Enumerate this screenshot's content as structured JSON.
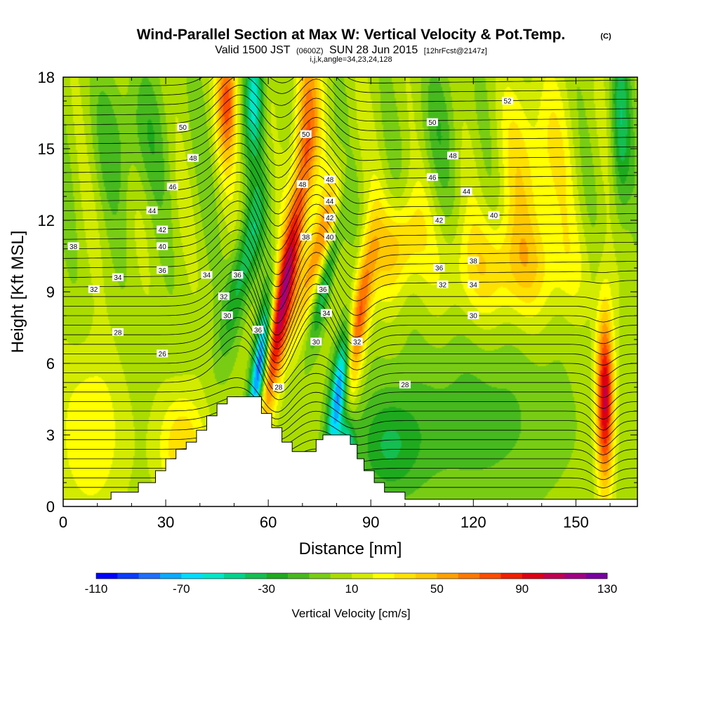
{
  "chart_data": {
    "type": "heatmap",
    "title": "Wind-Parallel Section at Max W: Vertical Velocity & Pot.Temp.",
    "copyright": "(C)",
    "subtitle": {
      "prefix": "Valid 1500 JST",
      "utc": "(0600Z)",
      "date": "SUN 28 Jun 2015",
      "forecast": "[12hrFcst@2147z]"
    },
    "info": "i,j,k,angle=34,23,24,128",
    "xlabel": "Distance [nm]",
    "ylabel": "Height [Kft MSL]",
    "xlim": [
      0,
      168
    ],
    "ylim": [
      0,
      18
    ],
    "x_ticks": [
      "0",
      "30",
      "60",
      "90",
      "120",
      "150"
    ],
    "y_ticks": [
      "0",
      "3",
      "6",
      "9",
      "12",
      "15",
      "18"
    ],
    "grid": false,
    "colorbar": {
      "label": "Vertical Velocity [cm/s]",
      "ticks": [
        "-110",
        "-70",
        "-30",
        "10",
        "50",
        "90",
        "130"
      ],
      "min": -110,
      "max": 130,
      "step": 10,
      "colors": [
        "#0000ff",
        "#0a3cff",
        "#1e6eff",
        "#0aaaff",
        "#00dcff",
        "#00e6c8",
        "#00d28c",
        "#14be50",
        "#1eaa1e",
        "#46b91e",
        "#78cd14",
        "#aadc00",
        "#d2eb00",
        "#ffff00",
        "#ffe100",
        "#ffc800",
        "#ffa000",
        "#ff7800",
        "#ff4b00",
        "#f01e00",
        "#dc0014",
        "#be0050",
        "#a00082",
        "#7800a0"
      ]
    },
    "background_w": 5,
    "terrain": [
      [
        0,
        0.3
      ],
      [
        14,
        0.3
      ],
      [
        14,
        0.6
      ],
      [
        22,
        0.6
      ],
      [
        22,
        1.0
      ],
      [
        27,
        1.0
      ],
      [
        27,
        1.5
      ],
      [
        30,
        1.5
      ],
      [
        30,
        2.0
      ],
      [
        33,
        2.0
      ],
      [
        33,
        2.4
      ],
      [
        36,
        2.4
      ],
      [
        36,
        2.7
      ],
      [
        39,
        2.7
      ],
      [
        39,
        3.2
      ],
      [
        42,
        3.2
      ],
      [
        42,
        3.8
      ],
      [
        45,
        3.8
      ],
      [
        45,
        4.3
      ],
      [
        48,
        4.3
      ],
      [
        48,
        4.6
      ],
      [
        58,
        4.6
      ],
      [
        58,
        3.9
      ],
      [
        61,
        3.9
      ],
      [
        61,
        3.3
      ],
      [
        64,
        3.3
      ],
      [
        64,
        2.7
      ],
      [
        67,
        2.7
      ],
      [
        67,
        2.3
      ],
      [
        74,
        2.3
      ],
      [
        74,
        2.8
      ],
      [
        76,
        2.8
      ],
      [
        76,
        3.0
      ],
      [
        84,
        3.0
      ],
      [
        84,
        2.6
      ],
      [
        86,
        2.6
      ],
      [
        86,
        2.0
      ],
      [
        88,
        2.0
      ],
      [
        88,
        1.5
      ],
      [
        91,
        1.5
      ],
      [
        91,
        1.0
      ],
      [
        94,
        1.0
      ],
      [
        94,
        0.6
      ],
      [
        100,
        0.6
      ],
      [
        100,
        0.3
      ],
      [
        168,
        0.3
      ]
    ],
    "w_features": [
      {
        "x": 64,
        "z": 8.5,
        "sx": 2.2,
        "sz": 3.6,
        "value": 105,
        "tilt": 0.38
      },
      {
        "x": 57.5,
        "z": 5.8,
        "sx": 1.6,
        "sz": 2.0,
        "value": -110,
        "tilt": 0.3
      },
      {
        "x": 53,
        "z": 10.2,
        "sx": 2.6,
        "sz": 2.5,
        "value": -45,
        "tilt": 0.5
      },
      {
        "x": 81,
        "z": 5.0,
        "sx": 1.8,
        "sz": 2.1,
        "value": -105,
        "tilt": 0.3
      },
      {
        "x": 83,
        "z": 2.2,
        "sx": 1.6,
        "sz": 1.0,
        "value": -70,
        "tilt": 0.0
      },
      {
        "x": 86,
        "z": 7.6,
        "sx": 2.2,
        "sz": 2.5,
        "value": 80,
        "tilt": 0.35
      },
      {
        "x": 74,
        "z": 10.5,
        "sx": 2.4,
        "sz": 2.2,
        "value": 55,
        "tilt": 0.6
      },
      {
        "x": 77,
        "z": 9.6,
        "sx": 1.5,
        "sz": 2.0,
        "value": -45,
        "tilt": 0.5
      },
      {
        "x": 56,
        "z": 17.2,
        "sx": 2.0,
        "sz": 1.8,
        "value": -60,
        "tilt": 0.0
      },
      {
        "x": 48,
        "z": 17.0,
        "sx": 2.2,
        "sz": 1.8,
        "value": 65,
        "tilt": 0.0
      },
      {
        "x": 71,
        "z": 16.0,
        "sx": 2.6,
        "sz": 2.8,
        "value": 55,
        "tilt": 0.1
      },
      {
        "x": 158.5,
        "z": 4.5,
        "sx": 1.8,
        "sz": 2.6,
        "value": 100,
        "tilt": 0.0
      },
      {
        "x": 163,
        "z": 16.0,
        "sx": 2.0,
        "sz": 3.0,
        "value": -40,
        "tilt": 0.0
      },
      {
        "x": 120,
        "z": 3.5,
        "sx": 18.0,
        "sz": 2.6,
        "value": -20,
        "tilt": 0.0
      },
      {
        "x": 95,
        "z": 2.5,
        "sx": 7.0,
        "sz": 1.6,
        "value": -30,
        "tilt": 0.0
      },
      {
        "x": 98,
        "z": 11.0,
        "sx": 5.0,
        "sz": 1.5,
        "value": 40,
        "tilt": 0.3
      },
      {
        "x": 130,
        "z": 10.0,
        "sx": 14.0,
        "sz": 1.6,
        "value": 35,
        "tilt": 0.0
      },
      {
        "x": 35,
        "z": 2.5,
        "sx": 5.0,
        "sz": 1.6,
        "value": 35,
        "tilt": 0.0
      },
      {
        "x": 8,
        "z": 3.0,
        "sx": 7.0,
        "sz": 2.5,
        "value": 25,
        "tilt": 0.0
      },
      {
        "x": 20,
        "z": 15.5,
        "sx": 8.0,
        "sz": 2.0,
        "value": -20,
        "tilt": 0.0
      },
      {
        "x": 138,
        "z": 14.5,
        "sx": 7.0,
        "sz": 2.5,
        "value": 30,
        "tilt": 0.0
      },
      {
        "x": 110,
        "z": 16.0,
        "sx": 5.0,
        "sz": 2.0,
        "value": -15,
        "tilt": 0.0
      }
    ],
    "theta_contour_labels": [
      {
        "text": "50",
        "x": 35,
        "y": 15.9
      },
      {
        "text": "48",
        "x": 38,
        "y": 14.6
      },
      {
        "text": "46",
        "x": 32,
        "y": 13.4
      },
      {
        "text": "44",
        "x": 26,
        "y": 12.4
      },
      {
        "text": "42",
        "x": 29,
        "y": 11.6
      },
      {
        "text": "40",
        "x": 29,
        "y": 10.9
      },
      {
        "text": "38",
        "x": 3,
        "y": 10.9
      },
      {
        "text": "36",
        "x": 29,
        "y": 9.9
      },
      {
        "text": "34",
        "x": 16,
        "y": 9.6
      },
      {
        "text": "34",
        "x": 42,
        "y": 9.7
      },
      {
        "text": "32",
        "x": 9,
        "y": 9.1
      },
      {
        "text": "36",
        "x": 51,
        "y": 9.7
      },
      {
        "text": "32",
        "x": 47,
        "y": 8.8
      },
      {
        "text": "30",
        "x": 48,
        "y": 8.0
      },
      {
        "text": "28",
        "x": 16,
        "y": 7.3
      },
      {
        "text": "26",
        "x": 29,
        "y": 6.4
      },
      {
        "text": "36",
        "x": 57,
        "y": 7.4
      },
      {
        "text": "28",
        "x": 63,
        "y": 5.0
      },
      {
        "text": "50",
        "x": 71,
        "y": 15.6
      },
      {
        "text": "48",
        "x": 70,
        "y": 13.5
      },
      {
        "text": "48",
        "x": 78,
        "y": 13.7
      },
      {
        "text": "44",
        "x": 78,
        "y": 12.8
      },
      {
        "text": "42",
        "x": 78,
        "y": 12.1
      },
      {
        "text": "38",
        "x": 71,
        "y": 11.3
      },
      {
        "text": "40",
        "x": 78,
        "y": 11.3
      },
      {
        "text": "36",
        "x": 76,
        "y": 9.1
      },
      {
        "text": "34",
        "x": 77,
        "y": 8.1
      },
      {
        "text": "30",
        "x": 74,
        "y": 6.9
      },
      {
        "text": "32",
        "x": 86,
        "y": 6.9
      },
      {
        "text": "28",
        "x": 100,
        "y": 5.1
      },
      {
        "text": "50",
        "x": 108,
        "y": 16.1
      },
      {
        "text": "48",
        "x": 114,
        "y": 14.7
      },
      {
        "text": "46",
        "x": 108,
        "y": 13.8
      },
      {
        "text": "44",
        "x": 118,
        "y": 13.2
      },
      {
        "text": "42",
        "x": 110,
        "y": 12.0
      },
      {
        "text": "40",
        "x": 126,
        "y": 12.2
      },
      {
        "text": "36",
        "x": 110,
        "y": 10.0
      },
      {
        "text": "38",
        "x": 120,
        "y": 10.3
      },
      {
        "text": "32",
        "x": 111,
        "y": 9.3
      },
      {
        "text": "34",
        "x": 120,
        "y": 9.3
      },
      {
        "text": "30",
        "x": 120,
        "y": 8.0
      },
      {
        "text": "52",
        "x": 130,
        "y": 17.0
      }
    ]
  }
}
